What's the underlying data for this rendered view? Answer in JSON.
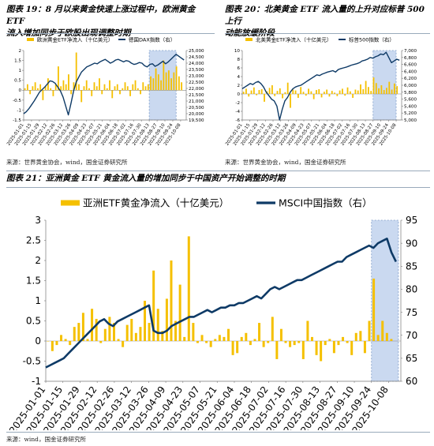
{
  "captions": {
    "fig19_line1": "图表 19：8 月以来黄金快速上涨过程中，欧洲黄金 ETF",
    "fig19_line2": "流入增加同步于欧股出现调整时期",
    "fig20_line1": "图表 20：北美黄金 ETF 流入量的上升对应标普 500 上行",
    "fig20_line2": "动能放缓阶段",
    "fig21": "图表 21：亚洲黄金 ETF 黄金流入量的增加同步于中国资产开始调整的时期"
  },
  "sources": {
    "top_left": "来源：世界黄金协会，wind，国金证券研究所",
    "top_right": "来源：世界黄金协会，wind，国金证券研究所",
    "bottom": "来源：wind，国金证券研究所"
  },
  "colors": {
    "bar": "#F5C000",
    "line": "#0E3A66",
    "shade": "#B8CCEB",
    "border": "#9AAAC0"
  },
  "chart_data": [
    {
      "type": "bar+line",
      "series": [
        {
          "name": "欧洲黄金ETF净流入（十亿美元）",
          "kind": "bar",
          "axis": "left",
          "values": [
            0.1,
            0.3,
            -0.2,
            0.2,
            0.4,
            0.1,
            0.3,
            -0.5,
            0.2,
            0.6,
            0.1,
            -0.3,
            0.3,
            1.2,
            0.2,
            0.5,
            0.3,
            0.8,
            -0.2,
            0.4,
            1.9,
            0.3,
            -0.6,
            0.2,
            0.5,
            0.1,
            -0.3,
            0.4,
            0.2,
            0.6,
            -0.2,
            0.3,
            0.1,
            0.5,
            -0.4,
            0.2,
            0.3,
            -0.2,
            0.1,
            0.4,
            0.2,
            -0.3,
            0.3,
            0.5,
            0.1,
            -0.2,
            0.4,
            0.2,
            0.3,
            0.7,
            0.6,
            1.1,
            0.8,
            0.5,
            1.5,
            0.9,
            1.0,
            0.6,
            0.9,
            1.2,
            0.7,
            0.4
          ]
        },
        {
          "name": "德国DAX指数（右）",
          "kind": "line",
          "axis": "right",
          "values": [
            20000,
            20150,
            20400,
            20700,
            21000,
            21350,
            21700,
            21900,
            22100,
            22350,
            22600,
            22550,
            22400,
            22100,
            21800,
            21300,
            20600,
            19900,
            20800,
            21800,
            22500,
            22900,
            23300,
            23500,
            23700,
            23800,
            23900,
            24000,
            23950,
            24100,
            24200,
            24300,
            24150,
            24000,
            24100,
            24250,
            24300,
            24200,
            24100,
            24200,
            24150,
            24000,
            23900,
            23950,
            24050,
            24000,
            23800,
            23700,
            23900,
            23950,
            23750,
            23850,
            24000,
            24150,
            23950,
            24100,
            24300,
            24500,
            24700,
            24550,
            24400,
            24250
          ]
        }
      ],
      "x_ticks": [
        "2025-01-01",
        "2025-01-15",
        "2025-01-29",
        "2025-02-12",
        "2025-02-26",
        "2025-03-12",
        "2025-03-26",
        "2025-04-09",
        "2025-04-23",
        "2025-05-07",
        "2025-05-21",
        "2025-06-04",
        "2025-06-18",
        "2025-07-02",
        "2025-07-16",
        "2025-07-30",
        "2025-08-13",
        "2025-08-27",
        "2025-09-10",
        "2025-09-24",
        "2025-10-08"
      ],
      "y_left_ticks": [
        "2",
        "1.5",
        "1",
        "0.5",
        "0",
        "-0.5",
        "-1",
        "-1.5"
      ],
      "y_left_range": [
        -1.5,
        2
      ],
      "y_right_ticks": [
        "25,000",
        "24,500",
        "24,000",
        "23,500",
        "23,000",
        "22,500",
        "22,000",
        "21,500",
        "21,000",
        "20,500",
        "20,000",
        "19,500"
      ],
      "y_right_range": [
        19500,
        25000
      ],
      "shaded_region": [
        "2025-08-13",
        "2025-09-30"
      ],
      "legend_position": "top"
    },
    {
      "type": "bar+line",
      "series": [
        {
          "name": "北美黄金ETF净流入（十亿美元）",
          "kind": "bar",
          "axis": "left",
          "values": [
            0.5,
            1.2,
            -0.6,
            0.8,
            1.5,
            -0.3,
            0.9,
            1.1,
            -1.8,
            0.6,
            1.4,
            2.0,
            -0.5,
            0.7,
            1.3,
            -1.0,
            0.4,
            2.6,
            -3.2,
            1.0,
            0.8,
            -0.9,
            1.6,
            0.5,
            -0.4,
            1.2,
            0.6,
            -1.2,
            0.9,
            1.1,
            -0.8,
            0.5,
            1.0,
            -0.6,
            0.7,
            0.3,
            -0.5,
            0.8,
            1.2,
            -0.4,
            1.5,
            0.6,
            -0.9,
            1.0,
            0.8,
            2.2,
            1.1,
            3.0,
            1.6,
            0.7,
            3.8,
            2.5,
            1.3,
            2.0,
            0.9,
            1.4,
            2.8,
            1.0,
            2.4,
            1.8
          ]
        },
        {
          "name": "标普500指数（右）",
          "kind": "line",
          "axis": "right",
          "values": [
            5900,
            5950,
            6000,
            6050,
            6020,
            6080,
            6110,
            6050,
            5950,
            5800,
            5700,
            5600,
            5550,
            5400,
            5000,
            5300,
            5550,
            5650,
            5800,
            5900,
            5950,
            5980,
            6000,
            6050,
            6100,
            6150,
            6200,
            6250,
            6300,
            6280,
            6320,
            6350,
            6380,
            6400,
            6420,
            6380,
            6450,
            6480,
            6500,
            6520,
            6550,
            6580,
            6600,
            6620,
            6650,
            6700,
            6720,
            6750,
            6800,
            6780,
            6820,
            6850,
            6900,
            6880,
            6950,
            6800,
            6650,
            6700,
            6750,
            6720
          ]
        }
      ],
      "x_ticks": [
        "2025-01-01",
        "2025-01-15",
        "2025-01-29",
        "2025-02-12",
        "2025-02-26",
        "2025-03-12",
        "2025-03-26",
        "2025-04-09",
        "2025-04-23",
        "2025-05-07",
        "2025-05-21",
        "2025-06-04",
        "2025-06-18",
        "2025-07-02",
        "2025-07-16",
        "2025-07-30",
        "2025-08-13",
        "2025-08-27",
        "2025-09-10",
        "2025-09-24",
        "2025-10-08"
      ],
      "y_left_ticks": [
        "10",
        "8",
        "6",
        "4",
        "2",
        "0",
        "-2",
        "-4",
        "-6"
      ],
      "y_left_range": [
        -6,
        10
      ],
      "y_right_ticks": [
        "7,000",
        "6,800",
        "6,600",
        "6,400",
        "6,200",
        "6,000",
        "5,800",
        "5,600",
        "5,400",
        "5,200",
        "5,000"
      ],
      "y_right_range": [
        5000,
        7000
      ],
      "shaded_region": [
        "2025-08-27",
        "2025-10-08"
      ],
      "legend_position": "top"
    },
    {
      "type": "bar+line",
      "series": [
        {
          "name": "亚洲ETF黄金净流入（十亿美元）",
          "kind": "bar",
          "axis": "left",
          "values": [
            0,
            -0.25,
            -0.1,
            0.15,
            0.05,
            -0.1,
            0.35,
            0.45,
            0.7,
            0.05,
            0.8,
            0.55,
            -0.05,
            0.3,
            0.6,
            0.45,
            0.05,
            -0.15,
            0.4,
            0.55,
            0.2,
            0.35,
            1.0,
            0.45,
            1.75,
            0.8,
            0.25,
            1.05,
            2.0,
            0.5,
            1.4,
            0.1,
            2.6,
            0.45,
            -0.05,
            0.15,
            -0.05,
            -0.15,
            0.05,
            0.15,
            0.1,
            0.3,
            -0.35,
            -0.3,
            0.1,
            0.2,
            -0.1,
            0.05,
            0.45,
            -0.15,
            -0.05,
            0.6,
            -0.45,
            0.3,
            -0.05,
            -0.15,
            -0.1,
            -0.05,
            -0.45,
            0.5,
            0.1,
            -0.35,
            -0.5,
            -0.1,
            0.05,
            -0.3,
            -0.1,
            0.1,
            -0.05,
            -0.35,
            0.2,
            0.25,
            -0.3,
            0.5,
            1.55,
            0.15,
            0.5,
            0.2,
            0.05
          ]
        },
        {
          "name": "MSCI中国指数（右）",
          "kind": "line",
          "axis": "right",
          "values": [
            63,
            63.5,
            64,
            64.5,
            65,
            66,
            67,
            68,
            69,
            70,
            71,
            72,
            73,
            73.5,
            72.5,
            72,
            73,
            73.5,
            74,
            74.5,
            75,
            75.5,
            76,
            76.5,
            71,
            70.5,
            70.5,
            71,
            72,
            72.5,
            73,
            73.5,
            74,
            74,
            74.5,
            75,
            75.5,
            75,
            75.5,
            76,
            76,
            76.5,
            76.5,
            77,
            77,
            77.5,
            78,
            78.5,
            78,
            79,
            80,
            80.5,
            80,
            80.5,
            81,
            81.5,
            82,
            82,
            82.5,
            83,
            83.5,
            84,
            84.5,
            85,
            85.5,
            86,
            86,
            87,
            87.5,
            88,
            88.5,
            89,
            89.5,
            89,
            90,
            90.5,
            91,
            88,
            86
          ]
        }
      ],
      "x_ticks": [
        "2025-01-01",
        "2025-01-15",
        "2025-01-29",
        "2025-02-12",
        "2025-02-26",
        "2025-03-12",
        "2025-03-26",
        "2025-04-09",
        "2025-04-23",
        "2025-05-07",
        "2025-05-21",
        "2025-06-04",
        "2025-06-18",
        "2025-07-02",
        "2025-07-16",
        "2025-07-30",
        "2025-08-13",
        "2025-08-27",
        "2025-09-10",
        "2025-09-24",
        "2025-10-08"
      ],
      "y_left_ticks": [
        "3",
        "2.5",
        "2",
        "1.5",
        "1",
        "0.5",
        "0",
        "-0.5",
        "-1"
      ],
      "y_left_range": [
        -1,
        3
      ],
      "y_right_ticks": [
        "95",
        "90",
        "85",
        "80",
        "75",
        "70",
        "65",
        "60"
      ],
      "y_right_range": [
        60,
        95
      ],
      "shaded_region": [
        "2025-09-24",
        "2025-10-16"
      ],
      "legend_position": "top"
    }
  ]
}
